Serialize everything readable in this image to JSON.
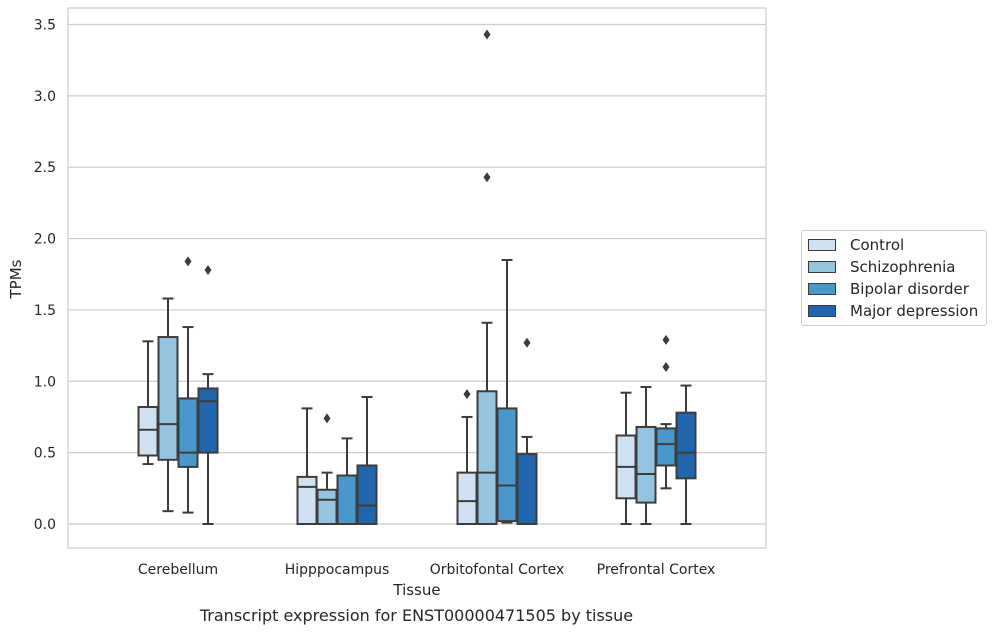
{
  "chart_data": {
    "type": "box",
    "xlabel": "Tissue",
    "ylabel": "TPMs",
    "caption": "Transcript expression for ENST00000471505 by tissue",
    "ylim": [
      -0.17,
      3.6
    ],
    "yticks": [
      "0.0",
      "0.5",
      "1.0",
      "1.5",
      "2.0",
      "2.5",
      "3.0",
      "3.5"
    ],
    "grid": "horizontal",
    "legend_position": "right",
    "categories": [
      "Cerebellum",
      "Hipppocampus",
      "Orbitofontal Cortex",
      "Prefrontal Cortex"
    ],
    "series": [
      {
        "name": "Control",
        "color": "#d0e1f2",
        "boxes": [
          {
            "whisker_low": 0.42,
            "q1": 0.48,
            "median": 0.66,
            "q3": 0.82,
            "whisker_high": 1.28,
            "outliers": []
          },
          {
            "whisker_low": 0.0,
            "q1": 0.0,
            "median": 0.26,
            "q3": 0.33,
            "whisker_high": 0.81,
            "outliers": []
          },
          {
            "whisker_low": 0.0,
            "q1": 0.0,
            "median": 0.16,
            "q3": 0.36,
            "whisker_high": 0.75,
            "outliers": [
              0.91
            ]
          },
          {
            "whisker_low": 0.0,
            "q1": 0.18,
            "median": 0.4,
            "q3": 0.62,
            "whisker_high": 0.92,
            "outliers": []
          }
        ]
      },
      {
        "name": "Schizophrenia",
        "color": "#94c4df",
        "boxes": [
          {
            "whisker_low": 0.09,
            "q1": 0.45,
            "median": 0.7,
            "q3": 1.31,
            "whisker_high": 1.58,
            "outliers": []
          },
          {
            "whisker_low": 0.0,
            "q1": 0.0,
            "median": 0.17,
            "q3": 0.24,
            "whisker_high": 0.36,
            "outliers": [
              0.74
            ]
          },
          {
            "whisker_low": 0.0,
            "q1": 0.0,
            "median": 0.36,
            "q3": 0.93,
            "whisker_high": 1.41,
            "outliers": [
              2.43,
              3.43
            ]
          },
          {
            "whisker_low": 0.0,
            "q1": 0.15,
            "median": 0.35,
            "q3": 0.68,
            "whisker_high": 0.96,
            "outliers": []
          }
        ]
      },
      {
        "name": "Bipolar disorder",
        "color": "#4a98c9",
        "boxes": [
          {
            "whisker_low": 0.08,
            "q1": 0.4,
            "median": 0.5,
            "q3": 0.88,
            "whisker_high": 1.38,
            "outliers": [
              1.84
            ]
          },
          {
            "whisker_low": 0.0,
            "q1": 0.0,
            "median": 0.0,
            "q3": 0.34,
            "whisker_high": 0.6,
            "outliers": []
          },
          {
            "whisker_low": 0.01,
            "q1": 0.02,
            "median": 0.27,
            "q3": 0.81,
            "whisker_high": 1.85,
            "outliers": []
          },
          {
            "whisker_low": 0.25,
            "q1": 0.41,
            "median": 0.56,
            "q3": 0.67,
            "whisker_high": 0.7,
            "outliers": [
              1.1,
              1.29
            ]
          }
        ]
      },
      {
        "name": "Major depression",
        "color": "#2166ac",
        "boxes": [
          {
            "whisker_low": 0.0,
            "q1": 0.5,
            "median": 0.86,
            "q3": 0.95,
            "whisker_high": 1.05,
            "outliers": [
              1.78
            ]
          },
          {
            "whisker_low": 0.0,
            "q1": 0.0,
            "median": 0.13,
            "q3": 0.41,
            "whisker_high": 0.89,
            "outliers": []
          },
          {
            "whisker_low": 0.0,
            "q1": 0.0,
            "median": 0.0,
            "q3": 0.49,
            "whisker_high": 0.61,
            "outliers": [
              1.27
            ]
          },
          {
            "whisker_low": 0.0,
            "q1": 0.32,
            "median": 0.5,
            "q3": 0.78,
            "whisker_high": 0.97,
            "outliers": []
          }
        ]
      }
    ]
  }
}
